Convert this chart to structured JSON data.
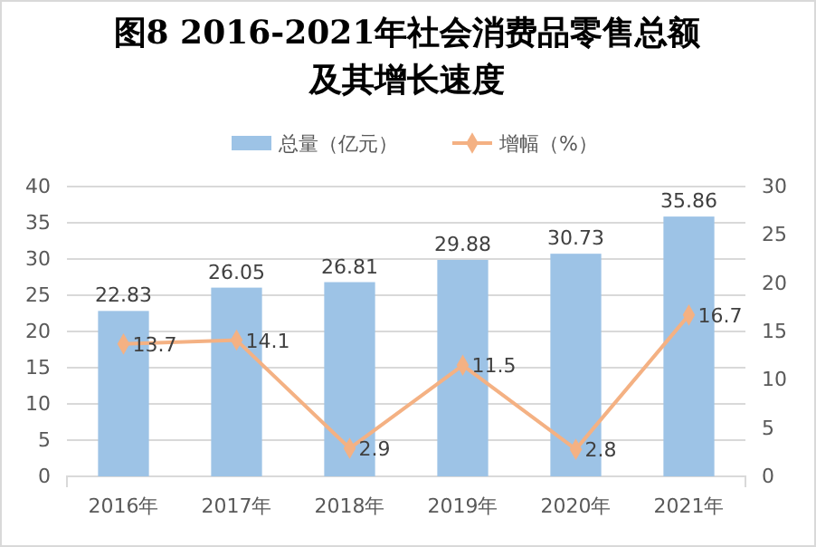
{
  "chart_data": {
    "type": "bar",
    "title": "图8  2016-2021年社会消费品零售总额及其增长速度",
    "categories": [
      "2016年",
      "2017年",
      "2018年",
      "2019年",
      "2020年",
      "2021年"
    ],
    "series": [
      {
        "name": "总量（亿元）",
        "color": "#9dc3e6",
        "values": [
          22.83,
          26.05,
          26.81,
          29.88,
          30.73,
          35.86
        ]
      },
      {
        "name": "增幅（%）",
        "type": "line",
        "axis": "y2",
        "color": "#f4b183",
        "marker": "diamond",
        "values": [
          13.7,
          14.1,
          2.9,
          11.5,
          2.8,
          16.7
        ]
      }
    ],
    "ylim": [
      0,
      40
    ],
    "yticks": [
      0,
      5,
      10,
      15,
      20,
      25,
      30,
      35,
      40
    ],
    "y2lim": [
      0,
      30
    ],
    "y2ticks": [
      0,
      5,
      10,
      15,
      20,
      25,
      30
    ],
    "grid": "y",
    "legend": "top",
    "data_labels": true
  }
}
